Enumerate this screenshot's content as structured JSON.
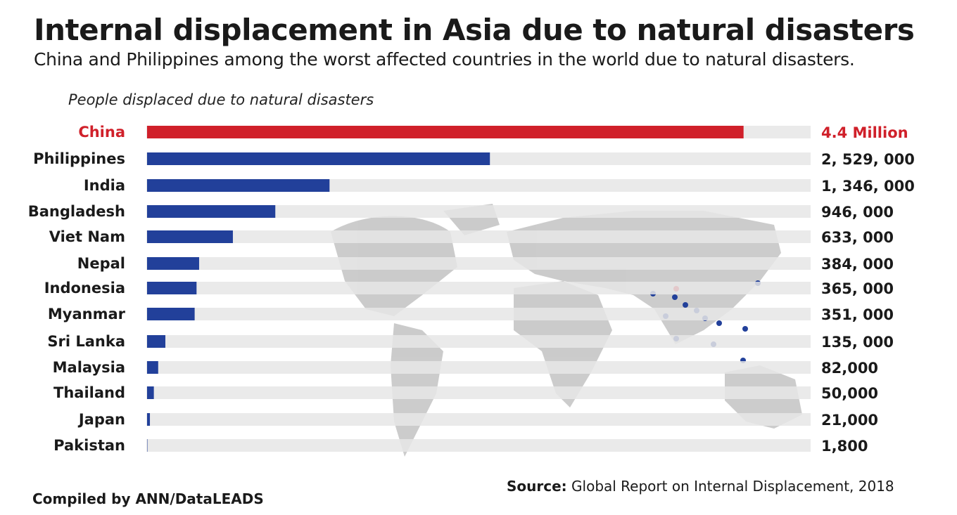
{
  "title": "Internal displacement in Asia due to natural disasters",
  "subtitle": "China and Philippines among the worst affected countries in the world due to natural disasters.",
  "footer": {
    "credit": "Compiled by ANN/DataLEADS",
    "source_label": "Source:",
    "source_text": " Global Report on Internal Displacement, 2018"
  },
  "colors": {
    "highlight": "#d0202a",
    "bar": "#22409a",
    "track": "#e6e6e6",
    "map": "#c9c9c9"
  },
  "chart_data": {
    "type": "bar",
    "orientation": "horizontal",
    "title": "People displaced due to natural disasters",
    "xlim": [
      0,
      4900000
    ],
    "categories": [
      "China",
      "Philippines",
      "India",
      "Bangladesh",
      "Viet Nam",
      "Nepal",
      "Indonesia",
      "Myanmar",
      "Sri Lanka",
      "Malaysia",
      "Thailand",
      "Japan",
      "Pakistan"
    ],
    "values": [
      4400000,
      2529000,
      1346000,
      946000,
      633000,
      384000,
      365000,
      351000,
      135000,
      82000,
      50000,
      21000,
      1800
    ],
    "labels": [
      "4.4 Million",
      "2, 529, 000",
      "1, 346, 000",
      "946, 000",
      "633, 000",
      "384, 000",
      "365, 000",
      "351, 000",
      "135, 000",
      "82,000",
      "50,000",
      "21,000",
      "1,800"
    ],
    "highlighted": [
      "China"
    ]
  }
}
